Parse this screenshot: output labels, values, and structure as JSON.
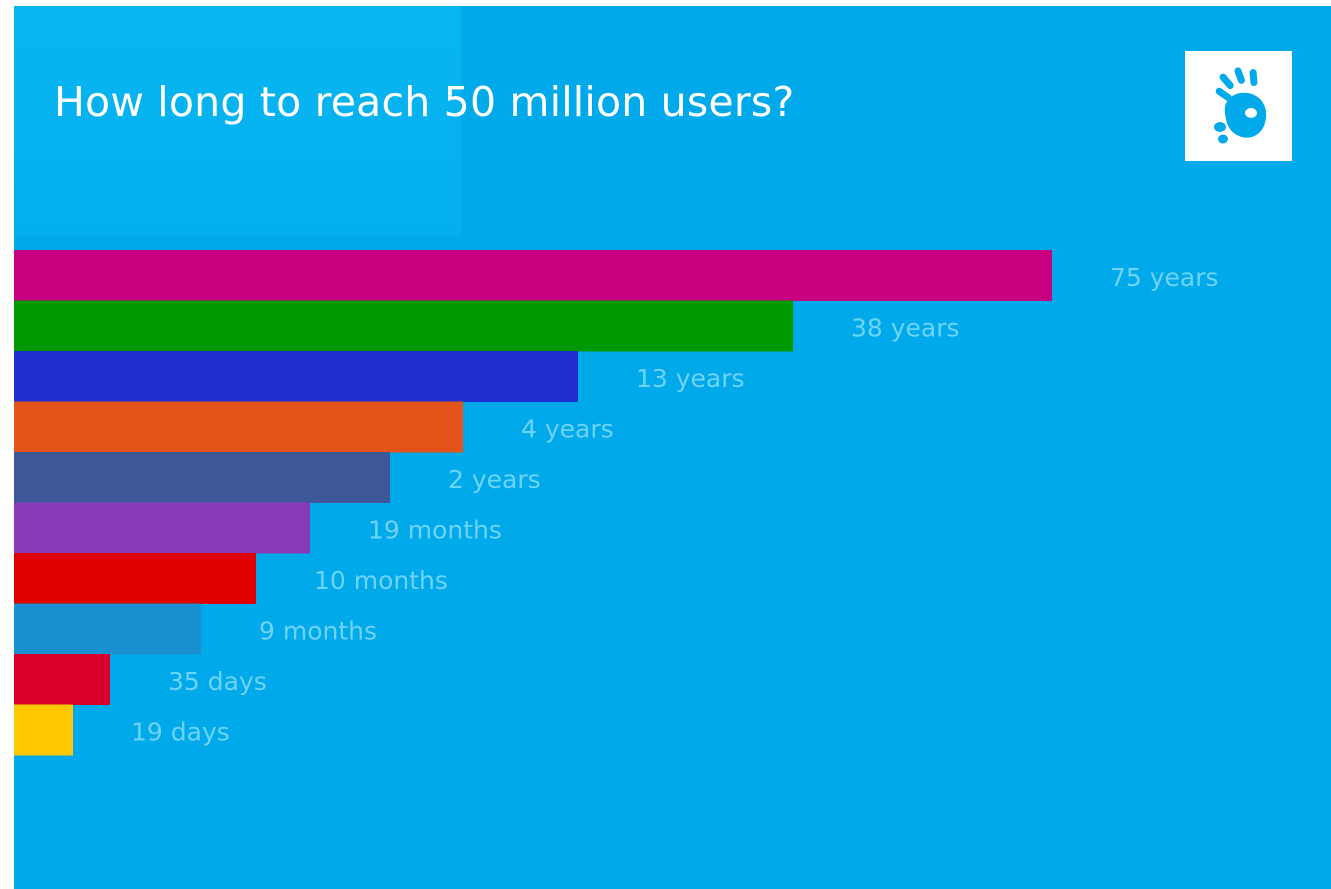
{
  "header": {
    "title": "How long to reach 50 million users?",
    "logo_icon": "hand-print-icon"
  },
  "colors": {
    "background": "#00a9e9",
    "label_text": "#6fd3f7"
  },
  "chart_data": {
    "type": "bar",
    "orientation": "horizontal",
    "title": "How long to reach 50 million users?",
    "unit_of_values": "years",
    "categories": [
      "",
      "",
      "",
      "",
      "",
      "",
      "",
      "",
      "",
      ""
    ],
    "values": [
      75,
      38,
      13,
      4,
      2,
      1.583,
      0.833,
      0.75,
      0.096,
      0.052
    ],
    "labels": [
      "75 years",
      "38 years",
      "13 years",
      "4 years",
      "2 years",
      "19 months",
      "10 months",
      "9 months",
      "35 days",
      "19 days"
    ],
    "colors": [
      "#c8007f",
      "#009a00",
      "#2030d0",
      "#e4531a",
      "#3c5898",
      "#8a3ab9",
      "#e00000",
      "#1a90d0",
      "#d8002a",
      "#ffc800"
    ],
    "grid": false,
    "legend": "none"
  }
}
